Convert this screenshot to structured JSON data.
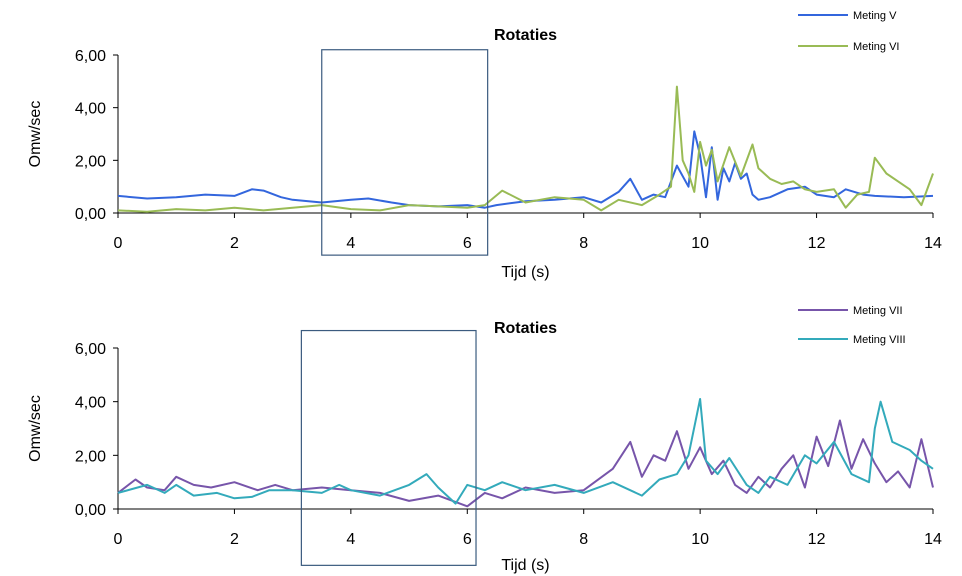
{
  "chart_data": [
    {
      "type": "line",
      "title": "Rotaties",
      "xlabel": "Tijd (s)",
      "ylabel": "Omw/sec",
      "xlim": [
        0,
        14
      ],
      "ylim": [
        0,
        6
      ],
      "xticks": [
        "0",
        "2",
        "4",
        "6",
        "8",
        "10",
        "12",
        "14"
      ],
      "yticks": [
        "0,00",
        "2,00",
        "4,00",
        "6,00"
      ],
      "legend": "top-right",
      "highlight_box": {
        "x": [
          3.5,
          6.35
        ],
        "y": [
          -1.6,
          6.2
        ]
      },
      "series": [
        {
          "name": "Meting V",
          "color": "#3366dd",
          "x": [
            0,
            0.5,
            1,
            1.5,
            2,
            2.3,
            2.5,
            2.8,
            3,
            3.5,
            4,
            4.3,
            4.7,
            5,
            5.5,
            6,
            6.3,
            6.5,
            7,
            7.5,
            8,
            8.3,
            8.6,
            8.8,
            9,
            9.2,
            9.4,
            9.6,
            9.8,
            9.9,
            10,
            10.1,
            10.2,
            10.3,
            10.4,
            10.5,
            10.6,
            10.7,
            10.8,
            10.9,
            11,
            11.2,
            11.5,
            11.8,
            12,
            12.3,
            12.5,
            12.8,
            13,
            13.5,
            14
          ],
          "y": [
            0.65,
            0.55,
            0.6,
            0.7,
            0.65,
            0.9,
            0.85,
            0.6,
            0.5,
            0.4,
            0.5,
            0.55,
            0.4,
            0.3,
            0.25,
            0.3,
            0.2,
            0.3,
            0.45,
            0.5,
            0.6,
            0.4,
            0.8,
            1.3,
            0.5,
            0.7,
            0.6,
            1.8,
            1.0,
            3.1,
            2.2,
            0.6,
            2.5,
            0.5,
            1.7,
            1.2,
            1.9,
            1.3,
            1.5,
            0.7,
            0.5,
            0.6,
            0.9,
            1.0,
            0.7,
            0.6,
            0.9,
            0.7,
            0.65,
            0.6,
            0.65
          ]
        },
        {
          "name": "Meting VI",
          "color": "#99bb55",
          "x": [
            0,
            0.5,
            1,
            1.5,
            2,
            2.5,
            3,
            3.5,
            4,
            4.5,
            5,
            5.5,
            6,
            6.3,
            6.6,
            7,
            7.5,
            8,
            8.3,
            8.6,
            9,
            9.3,
            9.5,
            9.6,
            9.7,
            9.8,
            9.9,
            10,
            10.1,
            10.2,
            10.3,
            10.5,
            10.7,
            10.9,
            11,
            11.2,
            11.4,
            11.6,
            11.8,
            12,
            12.3,
            12.5,
            12.7,
            12.9,
            13,
            13.2,
            13.4,
            13.6,
            13.8,
            14
          ],
          "y": [
            0.1,
            0.05,
            0.15,
            0.1,
            0.2,
            0.1,
            0.2,
            0.3,
            0.15,
            0.1,
            0.3,
            0.25,
            0.2,
            0.3,
            0.85,
            0.4,
            0.6,
            0.5,
            0.1,
            0.5,
            0.3,
            0.7,
            1.0,
            4.8,
            2.0,
            1.5,
            0.8,
            2.7,
            1.8,
            2.4,
            1.2,
            2.5,
            1.4,
            2.6,
            1.7,
            1.3,
            1.1,
            1.2,
            0.9,
            0.8,
            0.9,
            0.2,
            0.7,
            0.8,
            2.1,
            1.5,
            1.2,
            0.9,
            0.3,
            1.5
          ]
        }
      ]
    },
    {
      "type": "line",
      "title": "Rotaties",
      "xlabel": "Tijd (s)",
      "ylabel": "Omw/sec",
      "xlim": [
        0,
        14
      ],
      "ylim": [
        0,
        6
      ],
      "xticks": [
        "0",
        "2",
        "4",
        "6",
        "8",
        "10",
        "12",
        "14"
      ],
      "yticks": [
        "0,00",
        "2,00",
        "4,00",
        "6,00"
      ],
      "legend": "top-right",
      "highlight_box": {
        "x": [
          3.15,
          6.15
        ],
        "y": [
          -2.1,
          6.65
        ]
      },
      "series": [
        {
          "name": "Meting VII",
          "color": "#7755aa",
          "x": [
            0,
            0.3,
            0.5,
            0.8,
            1,
            1.3,
            1.6,
            2,
            2.4,
            2.7,
            3,
            3.5,
            4,
            4.5,
            5,
            5.5,
            6,
            6.3,
            6.6,
            7,
            7.5,
            8,
            8.5,
            8.8,
            9,
            9.2,
            9.4,
            9.6,
            9.8,
            10,
            10.2,
            10.4,
            10.6,
            10.8,
            11,
            11.2,
            11.4,
            11.6,
            11.8,
            12,
            12.2,
            12.4,
            12.6,
            12.8,
            13,
            13.2,
            13.4,
            13.6,
            13.8,
            14
          ],
          "y": [
            0.6,
            1.1,
            0.8,
            0.7,
            1.2,
            0.9,
            0.8,
            1.0,
            0.7,
            0.9,
            0.7,
            0.8,
            0.7,
            0.6,
            0.3,
            0.5,
            0.1,
            0.6,
            0.4,
            0.8,
            0.6,
            0.7,
            1.5,
            2.5,
            1.2,
            2.0,
            1.8,
            2.9,
            1.5,
            2.3,
            1.3,
            1.8,
            0.9,
            0.6,
            1.2,
            0.8,
            1.5,
            2.0,
            0.8,
            2.7,
            1.6,
            3.3,
            1.5,
            2.6,
            1.7,
            1.0,
            1.4,
            0.8,
            2.6,
            0.8
          ]
        },
        {
          "name": "Meting VIII",
          "color": "#33aabb",
          "x": [
            0,
            0.5,
            0.8,
            1,
            1.3,
            1.7,
            2,
            2.3,
            2.6,
            3,
            3.5,
            3.8,
            4,
            4.5,
            5,
            5.3,
            5.5,
            5.8,
            6,
            6.3,
            6.6,
            7,
            7.5,
            8,
            8.5,
            9,
            9.3,
            9.6,
            9.8,
            10,
            10.1,
            10.3,
            10.5,
            10.8,
            11,
            11.2,
            11.5,
            11.8,
            12,
            12.3,
            12.6,
            12.9,
            13,
            13.1,
            13.3,
            13.6,
            13.8,
            14
          ],
          "y": [
            0.6,
            0.9,
            0.6,
            0.9,
            0.5,
            0.6,
            0.4,
            0.45,
            0.7,
            0.7,
            0.6,
            0.9,
            0.7,
            0.5,
            0.9,
            1.3,
            0.8,
            0.2,
            0.9,
            0.7,
            1.0,
            0.7,
            0.9,
            0.6,
            1.0,
            0.5,
            1.1,
            1.3,
            2.0,
            4.1,
            1.8,
            1.3,
            1.9,
            0.9,
            0.6,
            1.2,
            0.9,
            2.0,
            1.7,
            2.5,
            1.3,
            1.0,
            3.0,
            4.0,
            2.5,
            2.2,
            1.8,
            1.5
          ]
        }
      ]
    }
  ]
}
